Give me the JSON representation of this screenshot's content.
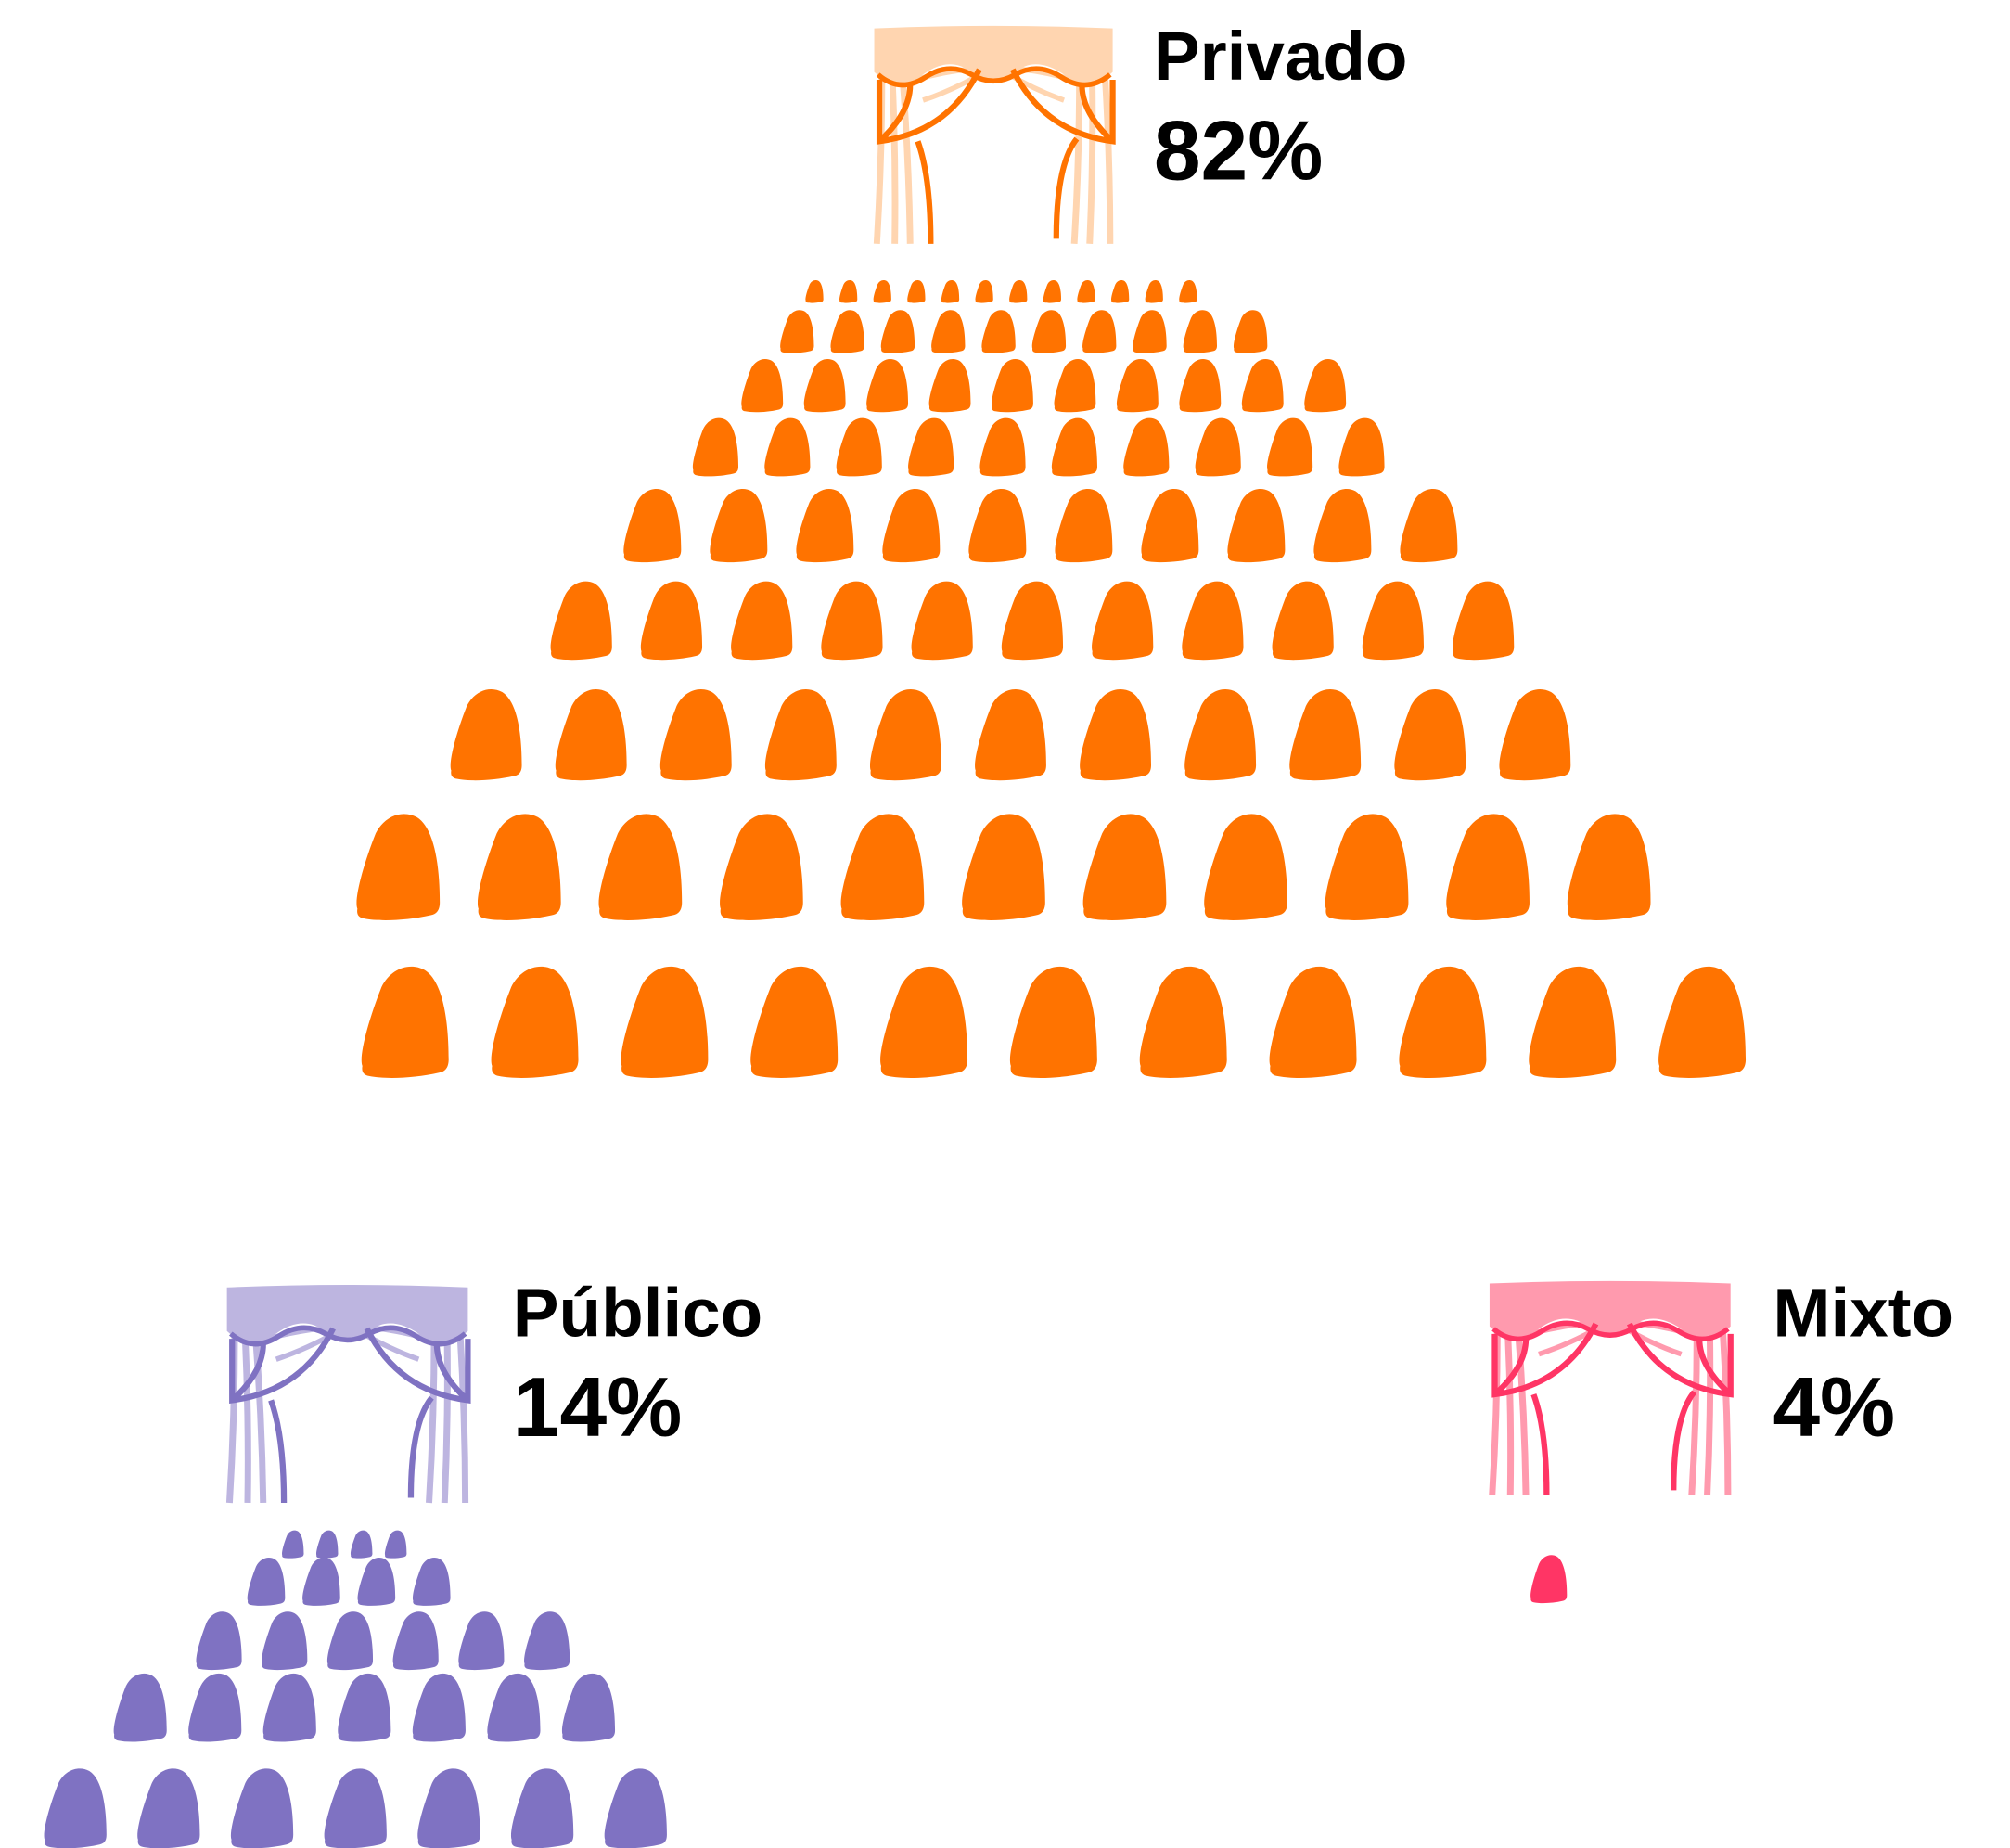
{
  "chart_data": {
    "type": "pictograph",
    "categories": [
      "Privado",
      "Público",
      "Mixto"
    ],
    "values": [
      82,
      14,
      4
    ],
    "value_labels": [
      "82%",
      "14%",
      "4%"
    ],
    "colors": [
      "#ff7300",
      "#7f72c2",
      "#ff3565"
    ],
    "curtain_colors": [
      "#ffd5b0",
      "#bdb5e0",
      "#ff9aae"
    ]
  }
}
